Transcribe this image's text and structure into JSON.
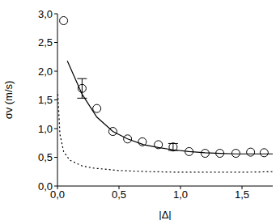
{
  "chart_data": {
    "type": "scatter",
    "x_label": "|Δ|",
    "y_label": "σv (m/s)",
    "xlim": [
      0,
      1.75
    ],
    "ylim": [
      0,
      3
    ],
    "xticks": [
      {
        "value": 0,
        "label": "0,0"
      },
      {
        "value": 0.5,
        "label": "0,5"
      },
      {
        "value": 1,
        "label": "1,0"
      },
      {
        "value": 1.5,
        "label": "1,5"
      }
    ],
    "yticks": [
      {
        "value": 0,
        "label": "0,0"
      },
      {
        "value": 0.5,
        "label": "0,5"
      },
      {
        "value": 1,
        "label": "1,0"
      },
      {
        "value": 1.5,
        "label": "1,5"
      },
      {
        "value": 2,
        "label": "2,0"
      },
      {
        "value": 2.5,
        "label": "2,5"
      },
      {
        "value": 3,
        "label": "3,0"
      }
    ],
    "grid": false,
    "series": [
      {
        "type": "scatter",
        "marker": "circle",
        "color": "#000000",
        "x": [
          0.05,
          0.2,
          0.32,
          0.45,
          0.57,
          0.69,
          0.82,
          0.94,
          1.07,
          1.2,
          1.32,
          1.45,
          1.57,
          1.68
        ],
        "values": [
          2.88,
          1.7,
          1.35,
          0.95,
          0.82,
          0.77,
          0.72,
          0.68,
          0.6,
          0.57,
          0.57,
          0.57,
          0.59,
          0.58
        ],
        "errors": [
          null,
          0.17,
          null,
          null,
          null,
          null,
          null,
          0.06,
          null,
          null,
          null,
          null,
          null,
          null
        ]
      },
      {
        "type": "line",
        "line_style": "solid",
        "color": "#000000",
        "x": [
          0.08,
          0.2,
          0.32,
          0.45,
          0.57,
          0.7,
          0.82,
          0.94,
          1.07,
          1.2,
          1.32,
          1.45,
          1.57,
          1.7,
          1.75
        ],
        "values": [
          2.18,
          1.6,
          1.2,
          0.95,
          0.82,
          0.72,
          0.67,
          0.63,
          0.6,
          0.58,
          0.57,
          0.56,
          0.56,
          0.56,
          0.56
        ]
      },
      {
        "type": "line",
        "line_style": "dotted",
        "color": "#000000",
        "x": [
          0.003,
          0.02,
          0.05,
          0.1,
          0.2,
          0.3,
          0.5,
          0.75,
          1.0,
          1.25,
          1.5,
          1.75
        ],
        "values": [
          1.6,
          0.9,
          0.6,
          0.45,
          0.35,
          0.31,
          0.27,
          0.25,
          0.24,
          0.24,
          0.24,
          0.25
        ]
      }
    ]
  }
}
